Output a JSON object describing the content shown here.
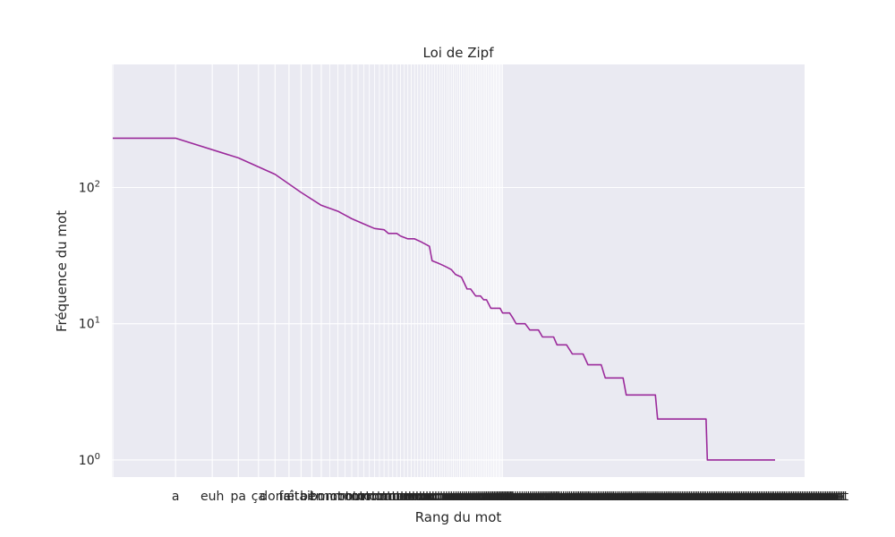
{
  "chart_data": {
    "type": "line",
    "title": "Loi de Zipf",
    "xlabel": "Rang du mot",
    "ylabel": "Fréquence du mot",
    "x_scale": "log",
    "y_scale": "log",
    "ylim": [
      0.75,
      800
    ],
    "grid": true,
    "line_color": "#9b2a9b",
    "background": "#eaeaf2",
    "x_tick_labels": [
      "a",
      "euh",
      "pa",
      "ça",
      "donc",
      "fait",
      "était",
      "ben",
      "bon"
    ],
    "y_ticks": [
      {
        "value": 1,
        "base": "10",
        "exp": "0"
      },
      {
        "value": 10,
        "base": "10",
        "exp": "1"
      },
      {
        "value": 100,
        "base": "10",
        "exp": "2"
      }
    ],
    "series": [
      {
        "points": [
          [
            1,
            230
          ],
          [
            2,
            230
          ],
          [
            4,
            165
          ],
          [
            6,
            125
          ],
          [
            8,
            92
          ],
          [
            10,
            74
          ],
          [
            12,
            67
          ],
          [
            14,
            59
          ],
          [
            16,
            54
          ],
          [
            18,
            50
          ],
          [
            20,
            49
          ],
          [
            21,
            46
          ],
          [
            23,
            46
          ],
          [
            24,
            44
          ],
          [
            26,
            42
          ],
          [
            28,
            42
          ],
          [
            30,
            40
          ],
          [
            33,
            37
          ],
          [
            34,
            29
          ],
          [
            36,
            28
          ],
          [
            38,
            27
          ],
          [
            40,
            26
          ],
          [
            42,
            25
          ],
          [
            44,
            23
          ],
          [
            47,
            22
          ],
          [
            50,
            18
          ],
          [
            52,
            18
          ],
          [
            55,
            16
          ],
          [
            58,
            16
          ],
          [
            60,
            15
          ],
          [
            62,
            15
          ],
          [
            65,
            13
          ],
          [
            72,
            13
          ],
          [
            74,
            12
          ],
          [
            80,
            12
          ],
          [
            83,
            11
          ],
          [
            86,
            10
          ],
          [
            95,
            10
          ],
          [
            100,
            9
          ],
          [
            110,
            9
          ],
          [
            115,
            8
          ],
          [
            130,
            8
          ],
          [
            135,
            7
          ],
          [
            150,
            7
          ],
          [
            160,
            6
          ],
          [
            180,
            6
          ],
          [
            190,
            5
          ],
          [
            220,
            5
          ],
          [
            230,
            4
          ],
          [
            280,
            4
          ],
          [
            290,
            3
          ],
          [
            400,
            3
          ],
          [
            410,
            2
          ],
          [
            700,
            2
          ],
          [
            710,
            1
          ],
          [
            1500,
            1
          ]
        ]
      }
    ]
  }
}
